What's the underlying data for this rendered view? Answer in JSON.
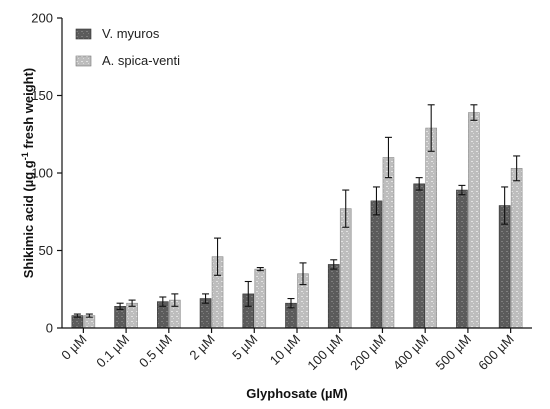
{
  "chart_data": {
    "type": "bar",
    "title": "",
    "xlabel": "Glyphosate (µM)",
    "ylabel_parts": {
      "main": "Shikimic acid (µg g",
      "sup": "-1",
      "tail": " fresh weight)"
    },
    "ylim": [
      0,
      200
    ],
    "yticks": [
      "0",
      "50",
      "100",
      "150",
      "200"
    ],
    "categories": [
      "0 µM",
      "0.1 µM",
      "0.5 µM",
      "2 µM",
      "5 µM",
      "10 µM",
      "100 µM",
      "200 µM",
      "400 µM",
      "500 µM",
      "600 µM"
    ],
    "legend_position": "top-left",
    "series": [
      {
        "name": "V. myuros",
        "color": "#5b5b5b",
        "values": [
          8,
          14,
          17,
          19,
          22,
          16,
          41,
          82,
          93,
          89,
          79
        ],
        "errors": [
          1,
          2,
          3,
          3,
          8,
          3,
          3,
          9,
          4,
          3,
          12
        ]
      },
      {
        "name": "A. spica-venti",
        "color": "#bdbdbd",
        "values": [
          8,
          16,
          18,
          46,
          38,
          35,
          77,
          110,
          129,
          139,
          103
        ],
        "errors": [
          1,
          2,
          4,
          12,
          1,
          7,
          12,
          13,
          15,
          5,
          8
        ]
      }
    ]
  }
}
